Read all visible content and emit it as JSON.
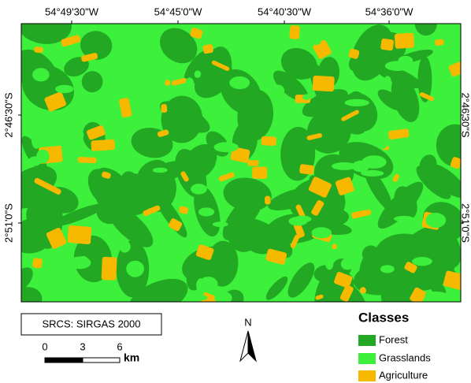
{
  "map": {
    "top_labels": [
      "54°49'30\"W",
      "54°45'0\"W",
      "54°40'30\"W",
      "54°36'0\"W"
    ],
    "left_labels": [
      "2°46'30\"S",
      "2°51'0\"S"
    ],
    "right_labels": [
      "2°46'30\"S",
      "2°51'0\"S"
    ],
    "crs": "SRCS: SIRGAS 2000",
    "scale": {
      "labels": [
        0,
        3,
        6
      ],
      "unit": "km"
    },
    "north": "N",
    "legend": {
      "title": "Classes",
      "items": [
        {
          "label": "Forest",
          "color": "#22a822"
        },
        {
          "label": "Grasslands",
          "color": "#3cf03c"
        },
        {
          "label": "Agriculture",
          "color": "#f7b800"
        }
      ]
    }
  }
}
